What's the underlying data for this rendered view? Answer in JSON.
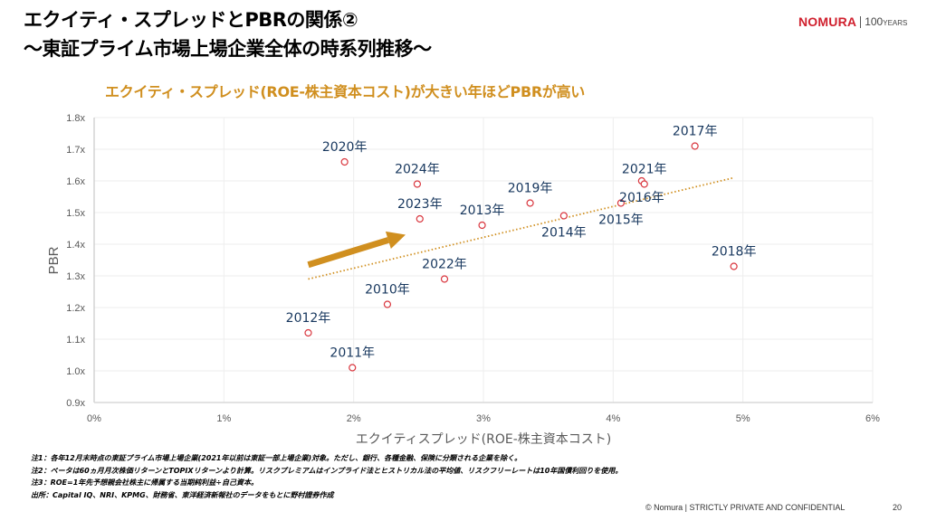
{
  "header": {
    "title_line1": "エクイティ・スプレッドとPBRの関係②",
    "title_line2": "～東証プライム市場上場企業全体の時系列推移～",
    "headline": "エクイティ・スプレッド(ROE-株主資本コスト)が大きい年ほどPBRが高い"
  },
  "logo": {
    "brand": "NOMURA",
    "years_num": "100",
    "years_word": "YEARS"
  },
  "colors": {
    "accent": "#d08f1f",
    "marker": "#d9363e",
    "label": "#17375e",
    "brand": "#d0202e",
    "grid": "#eeeeee"
  },
  "chart_data": {
    "type": "scatter",
    "title": "",
    "xlabel": "エクイティスプレッド(ROE-株主資本コスト)",
    "ylabel": "PBR",
    "xlim": [
      0,
      6
    ],
    "ylim": [
      0.9,
      1.8
    ],
    "x_ticks": [
      0,
      1,
      2,
      3,
      4,
      5,
      6
    ],
    "x_tick_labels": [
      "0%",
      "1%",
      "2%",
      "3%",
      "4%",
      "5%",
      "6%"
    ],
    "y_ticks": [
      0.9,
      1.0,
      1.1,
      1.2,
      1.3,
      1.4,
      1.5,
      1.6,
      1.7,
      1.8
    ],
    "y_tick_labels": [
      "0.9x",
      "1.0x",
      "1.1x",
      "1.2x",
      "1.3x",
      "1.4x",
      "1.5x",
      "1.6x",
      "1.7x",
      "1.8x"
    ],
    "grid": true,
    "trendline": {
      "style": "dotted",
      "x": [
        1.65,
        4.93
      ],
      "y": [
        1.29,
        1.61
      ]
    },
    "arrow": {
      "from": [
        1.65,
        1.335
      ],
      "to": [
        2.4,
        1.43
      ]
    },
    "points": [
      {
        "label": "2010年",
        "x": 2.26,
        "y": 1.21,
        "label_pos": "above"
      },
      {
        "label": "2011年",
        "x": 1.99,
        "y": 1.01,
        "label_pos": "above"
      },
      {
        "label": "2012年",
        "x": 1.65,
        "y": 1.12,
        "label_pos": "above"
      },
      {
        "label": "2013年",
        "x": 2.99,
        "y": 1.46,
        "label_pos": "above"
      },
      {
        "label": "2014年",
        "x": 3.62,
        "y": 1.49,
        "label_pos": "below"
      },
      {
        "label": "2015年",
        "x": 4.06,
        "y": 1.53,
        "label_pos": "below"
      },
      {
        "label": "2016年",
        "x": 4.22,
        "y": 1.6,
        "label_pos": "below"
      },
      {
        "label": "2017年",
        "x": 4.63,
        "y": 1.71,
        "label_pos": "above"
      },
      {
        "label": "2018年",
        "x": 4.93,
        "y": 1.33,
        "label_pos": "above"
      },
      {
        "label": "2019年",
        "x": 3.36,
        "y": 1.53,
        "label_pos": "above"
      },
      {
        "label": "2020年",
        "x": 1.93,
        "y": 1.66,
        "label_pos": "above"
      },
      {
        "label": "2021年",
        "x": 4.24,
        "y": 1.59,
        "label_pos": "above"
      },
      {
        "label": "2022年",
        "x": 2.7,
        "y": 1.29,
        "label_pos": "above"
      },
      {
        "label": "2023年",
        "x": 2.51,
        "y": 1.48,
        "label_pos": "above"
      },
      {
        "label": "2024年",
        "x": 2.49,
        "y": 1.59,
        "label_pos": "above"
      }
    ]
  },
  "notes": [
    "注1：各年12月末時点の東証プライム市場上場企業(2021年以前は東証一部上場企業)対象。ただし、銀行、各種金融、保険に分類される企業を除く。",
    "注2：ベータは60ヵ月月次株価リターンとTOPIXリターンより計算。リスクプレミアムはインプライド法とヒストリカル法の平均値、リスクフリーレートは10年国債利回りを使用。",
    "注3：ROE=1年先予想親会社株主に帰属する当期純利益÷自己資本。",
    "出所：Capital IQ、NRI、KPMG、財務省、東洋経済新報社のデータをもとに野村證券作成"
  ],
  "footer": {
    "confidential": "© Nomura | STRICTLY PRIVATE AND CONFIDENTIAL",
    "page_number": "20"
  }
}
